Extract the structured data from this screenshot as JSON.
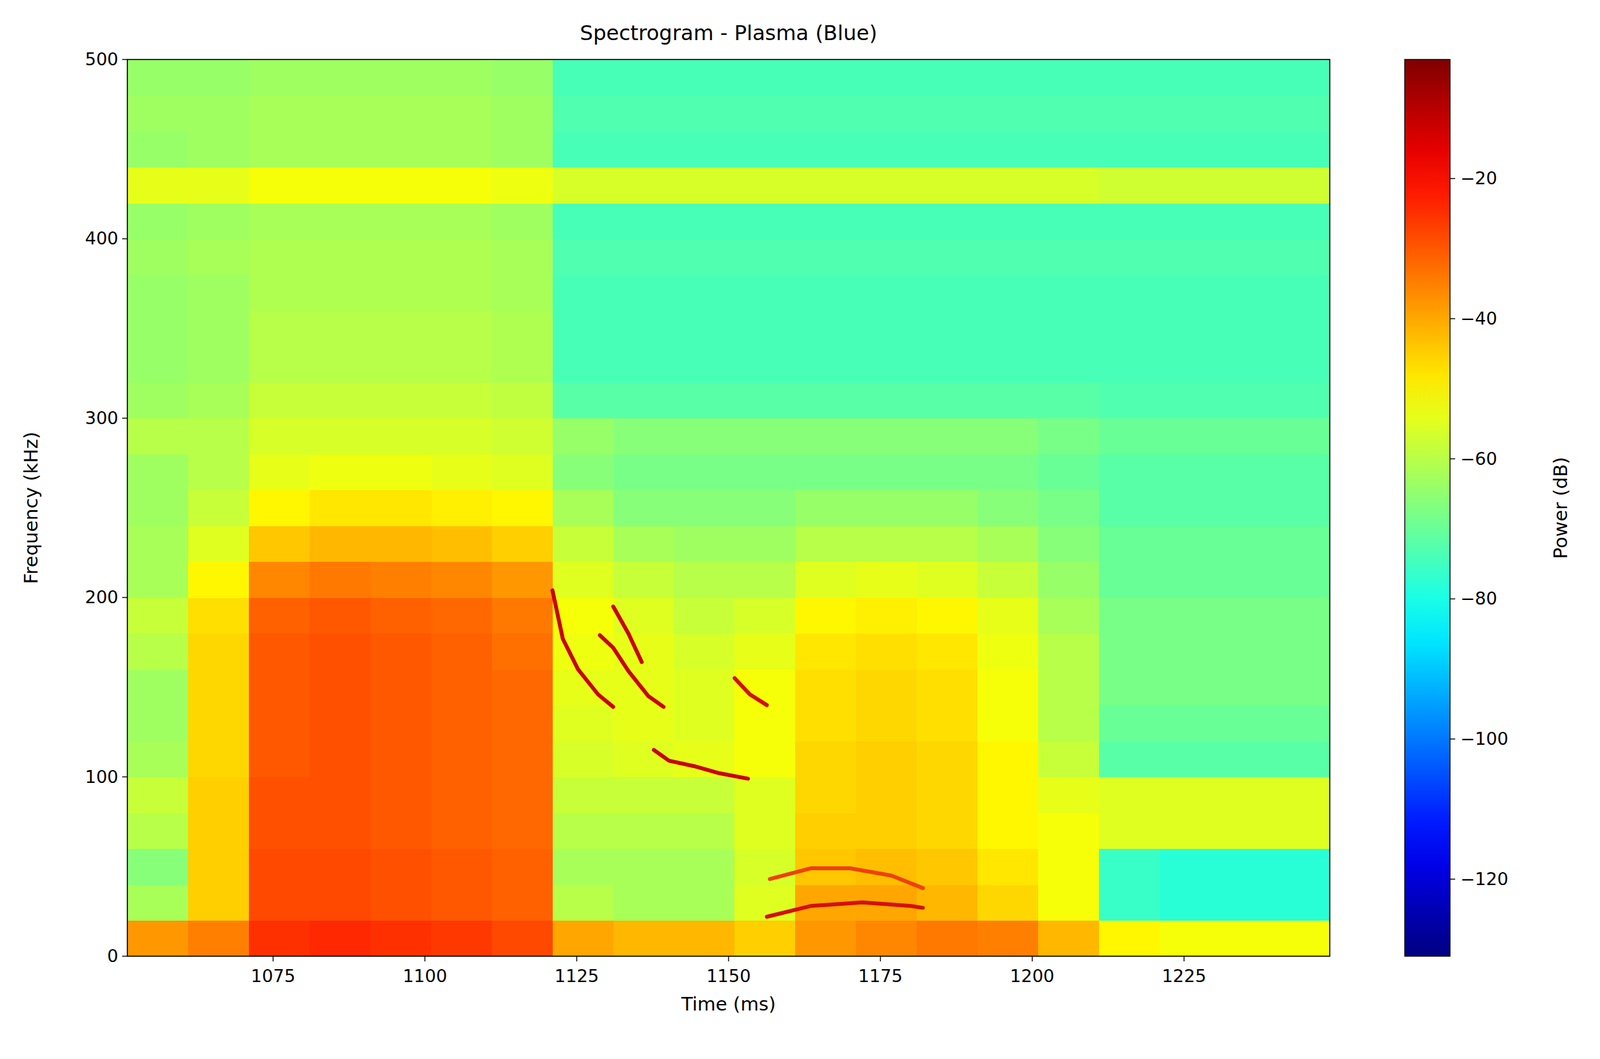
{
  "chart_data": {
    "type": "heatmap",
    "title": "Spectrogram - Plasma (Blue)",
    "x_label": "Time (ms)",
    "y_label": "Frequency (kHz)",
    "xlim": [
      1051,
      1249
    ],
    "xticks": [
      1075,
      1100,
      1125,
      1150,
      1175,
      1200,
      1225
    ],
    "ylim": [
      0,
      500
    ],
    "yticks": [
      0,
      100,
      200,
      300,
      400,
      500
    ],
    "x": [
      1056,
      1066,
      1076,
      1086,
      1096,
      1106,
      1116,
      1126,
      1136,
      1146,
      1156,
      1166,
      1176,
      1186,
      1196,
      1206,
      1216,
      1226,
      1236,
      1246
    ],
    "y": [
      10,
      30,
      50,
      70,
      90,
      110,
      130,
      150,
      170,
      190,
      210,
      230,
      250,
      270,
      290,
      310,
      330,
      350,
      370,
      390,
      410,
      430,
      450,
      470,
      490
    ],
    "z": [
      [
        -38,
        -35,
        -25,
        -24,
        -25,
        -26,
        -28,
        -40,
        -42,
        -42,
        -45,
        -38,
        -36,
        -34,
        -35,
        -42,
        -50,
        -52,
        -52,
        -52
      ],
      [
        -62,
        -45,
        -28,
        -28,
        -29,
        -30,
        -31,
        -60,
        -62,
        -62,
        -55,
        -40,
        -40,
        -42,
        -46,
        -52,
        -76,
        -78,
        -78,
        -78
      ],
      [
        -66,
        -45,
        -28,
        -28,
        -29,
        -30,
        -31,
        -62,
        -62,
        -62,
        -56,
        -44,
        -43,
        -44,
        -48,
        -52,
        -76,
        -78,
        -78,
        -78
      ],
      [
        -60,
        -45,
        -29,
        -29,
        -30,
        -31,
        -32,
        -60,
        -60,
        -60,
        -55,
        -45,
        -45,
        -46,
        -50,
        -52,
        -55,
        -55,
        -55,
        -55
      ],
      [
        -58,
        -45,
        -29,
        -29,
        -30,
        -31,
        -32,
        -58,
        -58,
        -58,
        -55,
        -46,
        -45,
        -46,
        -50,
        -54,
        -55,
        -55,
        -55,
        -55
      ],
      [
        -62,
        -46,
        -30,
        -29,
        -30,
        -31,
        -32,
        -56,
        -55,
        -54,
        -52,
        -46,
        -45,
        -46,
        -50,
        -58,
        -72,
        -72,
        -72,
        -72
      ],
      [
        -63,
        -46,
        -30,
        -29,
        -30,
        -31,
        -32,
        -55,
        -54,
        -55,
        -52,
        -47,
        -46,
        -47,
        -52,
        -60,
        -70,
        -70,
        -70,
        -70
      ],
      [
        -63,
        -46,
        -30,
        -29,
        -30,
        -31,
        -32,
        -54,
        -54,
        -55,
        -52,
        -47,
        -46,
        -47,
        -52,
        -60,
        -68,
        -68,
        -68,
        -68
      ],
      [
        -60,
        -46,
        -30,
        -29,
        -30,
        -31,
        -33,
        -53,
        -54,
        -56,
        -54,
        -48,
        -47,
        -48,
        -53,
        -60,
        -68,
        -68,
        -68,
        -68
      ],
      [
        -58,
        -47,
        -31,
        -30,
        -31,
        -32,
        -34,
        -52,
        -55,
        -58,
        -56,
        -50,
        -49,
        -50,
        -54,
        -62,
        -68,
        -68,
        -68,
        -68
      ],
      [
        -62,
        -50,
        -36,
        -34,
        -35,
        -36,
        -38,
        -55,
        -58,
        -60,
        -60,
        -55,
        -54,
        -55,
        -58,
        -64,
        -70,
        -70,
        -70,
        -70
      ],
      [
        -62,
        -55,
        -44,
        -42,
        -42,
        -43,
        -45,
        -58,
        -62,
        -63,
        -63,
        -60,
        -60,
        -60,
        -62,
        -66,
        -70,
        -70,
        -70,
        -70
      ],
      [
        -63,
        -58,
        -50,
        -48,
        -48,
        -49,
        -50,
        -62,
        -66,
        -66,
        -66,
        -64,
        -64,
        -64,
        -66,
        -68,
        -72,
        -72,
        -72,
        -72
      ],
      [
        -63,
        -60,
        -54,
        -53,
        -53,
        -54,
        -55,
        -66,
        -68,
        -68,
        -68,
        -68,
        -68,
        -68,
        -68,
        -70,
        -72,
        -72,
        -72,
        -72
      ],
      [
        -60,
        -60,
        -56,
        -56,
        -56,
        -56,
        -57,
        -64,
        -66,
        -66,
        -66,
        -66,
        -66,
        -66,
        -66,
        -68,
        -70,
        -70,
        -70,
        -70
      ],
      [
        -63,
        -62,
        -58,
        -58,
        -58,
        -58,
        -59,
        -72,
        -72,
        -72,
        -72,
        -72,
        -72,
        -72,
        -72,
        -72,
        -73,
        -73,
        -73,
        -73
      ],
      [
        -64,
        -63,
        -60,
        -60,
        -60,
        -60,
        -61,
        -74,
        -74,
        -74,
        -74,
        -74,
        -74,
        -74,
        -74,
        -74,
        -74,
        -74,
        -74,
        -74
      ],
      [
        -64,
        -63,
        -60,
        -60,
        -60,
        -60,
        -61,
        -74,
        -74,
        -74,
        -74,
        -74,
        -74,
        -74,
        -74,
        -74,
        -74,
        -74,
        -74,
        -74
      ],
      [
        -64,
        -63,
        -61,
        -61,
        -61,
        -61,
        -62,
        -74,
        -74,
        -74,
        -74,
        -74,
        -74,
        -74,
        -74,
        -74,
        -74,
        -74,
        -74,
        -74
      ],
      [
        -63,
        -62,
        -61,
        -61,
        -61,
        -61,
        -62,
        -73,
        -73,
        -73,
        -73,
        -73,
        -73,
        -73,
        -73,
        -73,
        -73,
        -73,
        -73,
        -73
      ],
      [
        -64,
        -63,
        -62,
        -62,
        -62,
        -62,
        -63,
        -74,
        -74,
        -74,
        -74,
        -74,
        -74,
        -74,
        -74,
        -74,
        -74,
        -74,
        -74,
        -74
      ],
      [
        -54,
        -54,
        -52,
        -52,
        -52,
        -52,
        -53,
        -56,
        -56,
        -56,
        -56,
        -56,
        -56,
        -56,
        -56,
        -56,
        -57,
        -57,
        -57,
        -57
      ],
      [
        -64,
        -63,
        -62,
        -62,
        -62,
        -62,
        -63,
        -74,
        -74,
        -74,
        -74,
        -74,
        -74,
        -74,
        -74,
        -74,
        -74,
        -74,
        -74,
        -74
      ],
      [
        -63,
        -63,
        -62,
        -62,
        -62,
        -62,
        -63,
        -73,
        -73,
        -73,
        -73,
        -73,
        -73,
        -73,
        -73,
        -73,
        -73,
        -73,
        -73,
        -73
      ],
      [
        -64,
        -64,
        -63,
        -63,
        -63,
        -63,
        -64,
        -74,
        -74,
        -74,
        -74,
        -74,
        -74,
        -74,
        -74,
        -74,
        -74,
        -74,
        -74,
        -74
      ]
    ],
    "series": [
      {
        "type": "line",
        "color": "#c80000",
        "x": [
          1121,
          1122.7,
          1125.2,
          1128.5,
          1131
        ],
        "values": [
          204,
          177,
          160,
          146,
          139
        ]
      },
      {
        "type": "line",
        "color": "#c80000",
        "x": [
          1128.8,
          1131,
          1133.5,
          1136.8,
          1139.3
        ],
        "values": [
          179,
          172,
          159,
          145,
          139
        ]
      },
      {
        "type": "line",
        "color": "#c80000",
        "x": [
          1131,
          1133.5,
          1135.7
        ],
        "values": [
          195,
          180,
          164
        ]
      },
      {
        "type": "line",
        "color": "#c80000",
        "x": [
          1137.7,
          1140.2,
          1144.3,
          1148.5,
          1153.2
        ],
        "values": [
          115,
          109,
          106,
          102,
          99
        ]
      },
      {
        "type": "line",
        "color": "#d01000",
        "x": [
          1151,
          1153.5,
          1156.3
        ],
        "values": [
          155,
          146,
          140
        ]
      },
      {
        "type": "line",
        "color": "#d41000",
        "x": [
          1156.3,
          1163.5,
          1172,
          1180,
          1182
        ],
        "values": [
          22,
          28,
          30,
          28,
          27
        ]
      },
      {
        "type": "line",
        "color": "#f04000",
        "x": [
          1156.8,
          1163.5,
          1170,
          1176.8,
          1182
        ],
        "values": [
          43,
          49,
          49,
          45,
          38
        ]
      }
    ],
    "colorbar": {
      "label": "Power (dB)",
      "lim": [
        -131,
        -3
      ],
      "ticks": [
        {
          "value": -120,
          "label": "−120"
        },
        {
          "value": -100,
          "label": "−100"
        },
        {
          "value": -80,
          "label": "−80"
        },
        {
          "value": -60,
          "label": "−60"
        },
        {
          "value": -40,
          "label": "−40"
        },
        {
          "value": -20,
          "label": "−20"
        }
      ]
    }
  }
}
